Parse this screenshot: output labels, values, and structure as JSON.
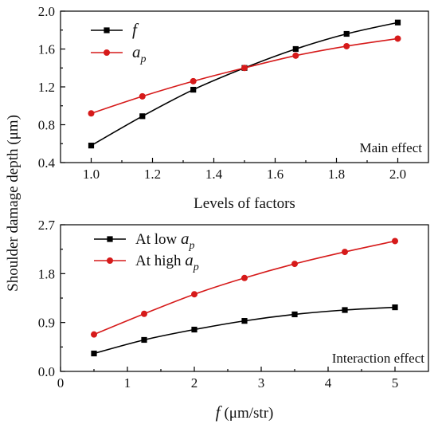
{
  "colors": {
    "series_black": "#000000",
    "series_red": "#d61a1a"
  },
  "shared_ylabel": "Shoulder damage depth (μm)",
  "chart_data": [
    {
      "type": "line",
      "panel_note": "Main effect",
      "xlabel": "Levels of factors",
      "xlim": [
        0.9,
        2.1
      ],
      "ylim": [
        0.4,
        2.0
      ],
      "xticks": [
        1.0,
        1.2,
        1.4,
        1.6,
        1.8,
        2.0
      ],
      "xtick_labels": [
        "1.0",
        "1.2",
        "1.4",
        "1.6",
        "1.8",
        "2.0"
      ],
      "yticks": [
        0.4,
        0.8,
        1.2,
        1.6,
        2.0
      ],
      "ytick_labels": [
        "0.4",
        "0.8",
        "1.2",
        "1.6",
        "2.0"
      ],
      "legend_position": "top-left",
      "series": [
        {
          "legend_symbol": "f",
          "legend_sub": "",
          "color": "#000000",
          "marker": "square",
          "x": [
            1.0,
            1.167,
            1.333,
            1.5,
            1.667,
            1.833,
            2.0
          ],
          "y": [
            0.58,
            0.89,
            1.17,
            1.4,
            1.6,
            1.76,
            1.88
          ]
        },
        {
          "legend_symbol": "a",
          "legend_sub": "p",
          "color": "#d61a1a",
          "marker": "circle",
          "x": [
            1.0,
            1.167,
            1.333,
            1.5,
            1.667,
            1.833,
            2.0
          ],
          "y": [
            0.92,
            1.1,
            1.26,
            1.4,
            1.53,
            1.63,
            1.71
          ]
        }
      ]
    },
    {
      "type": "line",
      "panel_note": "Interaction effect",
      "xlabel_symbol": "f",
      "xlabel_unit": "(μm/str)",
      "xlim": [
        0,
        5.5
      ],
      "ylim": [
        0.0,
        2.7
      ],
      "xticks": [
        0,
        1,
        2,
        3,
        4,
        5
      ],
      "xtick_labels": [
        "0",
        "1",
        "2",
        "3",
        "4",
        "5"
      ],
      "yticks": [
        0.0,
        0.9,
        1.8,
        2.7
      ],
      "ytick_labels": [
        "0.0",
        "0.9",
        "1.8",
        "2.7"
      ],
      "legend_position": "top-left",
      "series": [
        {
          "legend_text": "At low ",
          "legend_symbol": "a",
          "legend_sub": "p",
          "color": "#000000",
          "marker": "square",
          "x": [
            0.5,
            1.25,
            2.0,
            2.75,
            3.5,
            4.25,
            5.0
          ],
          "y": [
            0.33,
            0.58,
            0.77,
            0.93,
            1.05,
            1.13,
            1.18
          ]
        },
        {
          "legend_text": "At high ",
          "legend_symbol": "a",
          "legend_sub": "p",
          "color": "#d61a1a",
          "marker": "circle",
          "x": [
            0.5,
            1.25,
            2.0,
            2.75,
            3.5,
            4.25,
            5.0
          ],
          "y": [
            0.68,
            1.06,
            1.42,
            1.72,
            1.98,
            2.2,
            2.4
          ]
        }
      ]
    }
  ]
}
